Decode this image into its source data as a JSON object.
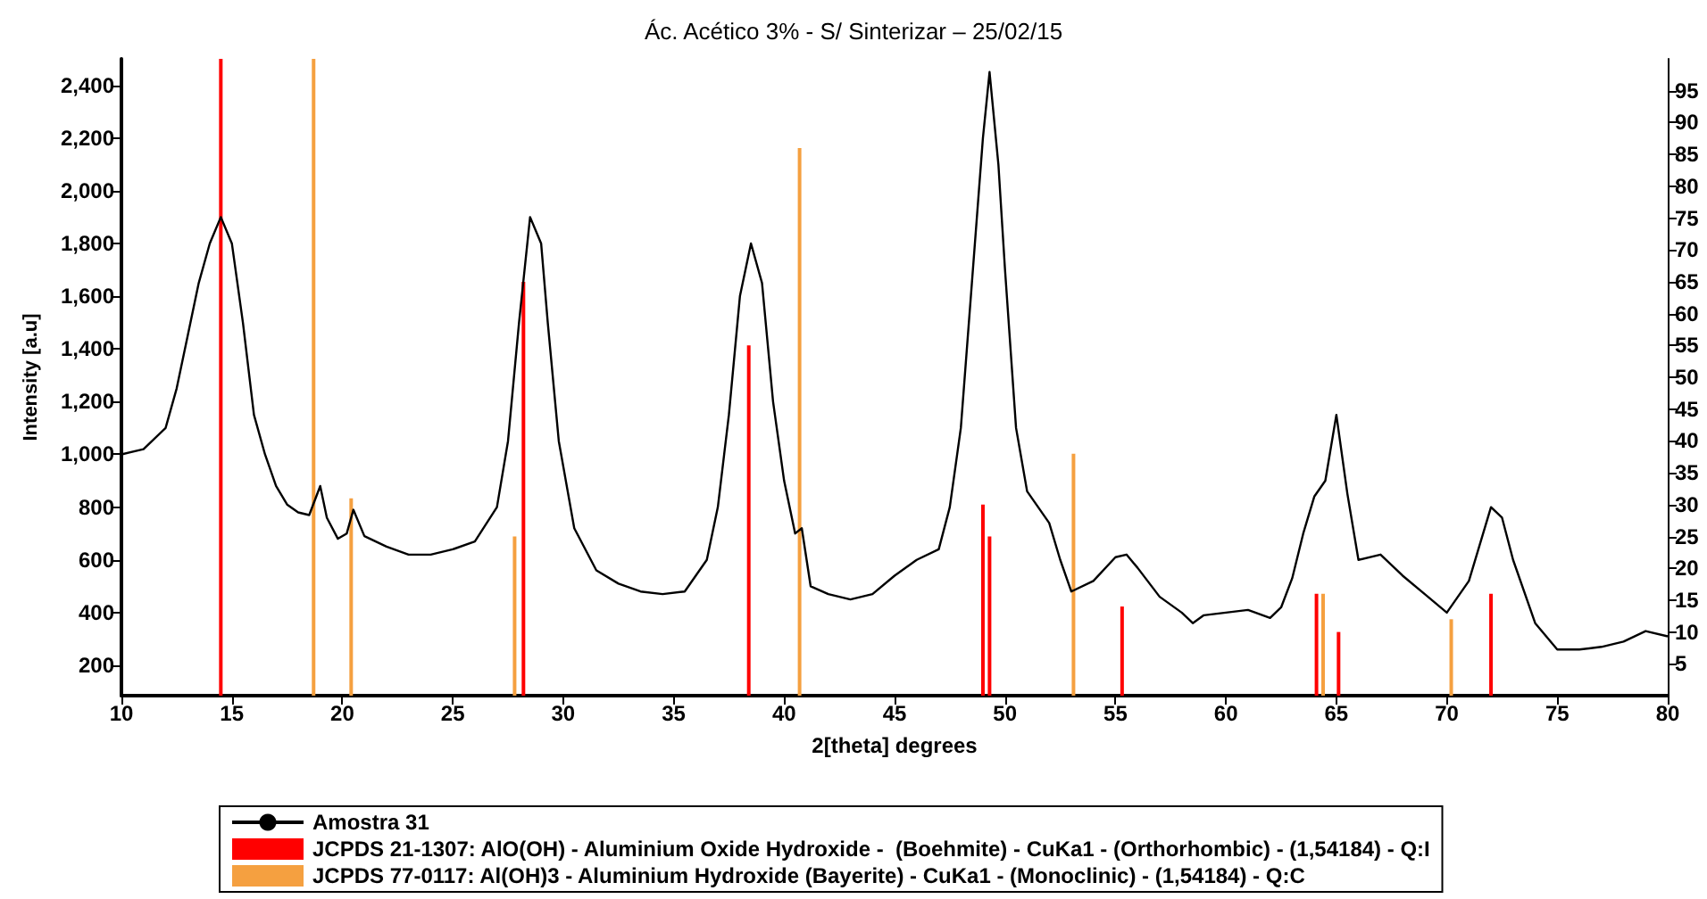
{
  "chart_data": {
    "type": "line",
    "title": "Ác. Acético 3% - S/ Sinterizar – 25/02/15",
    "xlabel": "2[theta] degrees",
    "ylabel": "Intensity [a.u]",
    "xlim": [
      10,
      80
    ],
    "xticks": [
      10,
      15,
      20,
      25,
      30,
      35,
      40,
      45,
      50,
      55,
      60,
      65,
      70,
      75,
      80
    ],
    "ylim": [
      85,
      2500
    ],
    "yticks": [
      200,
      400,
      600,
      800,
      {
        "value": 1000,
        "label": "1,000"
      },
      {
        "value": 1200,
        "label": "1,200"
      },
      {
        "value": 1400,
        "label": "1,400"
      },
      {
        "value": 1600,
        "label": "1,600"
      },
      {
        "value": 1800,
        "label": "1,800"
      },
      {
        "value": 2000,
        "label": "2,000"
      },
      {
        "value": 2200,
        "label": "2,200"
      },
      {
        "value": 2400,
        "label": "2,400"
      }
    ],
    "y2lim": [
      0,
      100
    ],
    "y2ticks": [
      5,
      10,
      15,
      20,
      25,
      30,
      35,
      40,
      45,
      50,
      55,
      60,
      65,
      70,
      75,
      80,
      85,
      90,
      95
    ],
    "grid": false,
    "legend": "bottom",
    "marker": "none",
    "line_style": "solid",
    "series": [
      {
        "name": "Amostra 31",
        "color": "#000000",
        "x": [
          10,
          11,
          12,
          12.5,
          13,
          13.5,
          14,
          14.5,
          15,
          15.5,
          16,
          16.5,
          17,
          17.5,
          18,
          18.5,
          19,
          19.3,
          19.8,
          20.2,
          20.5,
          21,
          22,
          23,
          24,
          25,
          26,
          27,
          27.5,
          28,
          28.5,
          29,
          29.3,
          29.8,
          30.5,
          31.5,
          32.5,
          33.5,
          34.5,
          35.5,
          36.5,
          37,
          37.5,
          38,
          38.5,
          39,
          39.5,
          40,
          40.5,
          40.8,
          41.2,
          42,
          43,
          44,
          45,
          46,
          47,
          47.5,
          48,
          48.5,
          49,
          49.3,
          49.7,
          50,
          50.5,
          51,
          52,
          52.5,
          53,
          54,
          55,
          55.5,
          56,
          57,
          58,
          58.5,
          59,
          60,
          61,
          62,
          62.5,
          63,
          63.5,
          64,
          64.5,
          65,
          65.5,
          66,
          67,
          68,
          69,
          70,
          71,
          72,
          72.5,
          73,
          74,
          75,
          76,
          77,
          78,
          79,
          80
        ],
        "values": [
          1000,
          1020,
          1100,
          1250,
          1450,
          1650,
          1800,
          1900,
          1800,
          1500,
          1150,
          1000,
          880,
          810,
          780,
          770,
          880,
          760,
          680,
          700,
          790,
          690,
          650,
          620,
          620,
          640,
          670,
          800,
          1050,
          1500,
          1900,
          1800,
          1500,
          1050,
          720,
          560,
          510,
          480,
          470,
          480,
          600,
          800,
          1150,
          1600,
          1800,
          1650,
          1200,
          900,
          700,
          720,
          500,
          470,
          450,
          470,
          540,
          600,
          640,
          800,
          1100,
          1650,
          2200,
          2450,
          2100,
          1700,
          1100,
          860,
          740,
          600,
          480,
          520,
          610,
          620,
          570,
          460,
          400,
          360,
          390,
          400,
          410,
          380,
          420,
          530,
          700,
          840,
          900,
          1150,
          850,
          600,
          620,
          540,
          470,
          400,
          520,
          800,
          760,
          600,
          360,
          260,
          260,
          270,
          290,
          330,
          310
        ]
      },
      {
        "name": "JCPDS 21-1307: AlO(OH) - Aluminium Oxide Hydroxide -  (Boehmite) - CuKa1 - (Orthorhombic) - (1,54184) - Q:I",
        "type": "bar",
        "axis": "y2",
        "color": "#ff0000",
        "x": [
          14.5,
          28.2,
          38.4,
          49.0,
          49.3,
          55.3,
          64.1,
          65.1,
          72.0
        ],
        "values": [
          100,
          65,
          55,
          30,
          25,
          14,
          16,
          10,
          16
        ]
      },
      {
        "name": "JCPDS 77-0117: Al(OH)3 - Aluminium Hydroxide (Bayerite) - CuKa1 - (Monoclinic) - (1,54184) - Q:C",
        "type": "bar",
        "axis": "y2",
        "color": "#f5a040",
        "x": [
          18.7,
          20.4,
          27.8,
          40.7,
          53.1,
          64.4,
          70.2
        ],
        "values": [
          100,
          31,
          25,
          86,
          38,
          16,
          12
        ]
      }
    ]
  }
}
